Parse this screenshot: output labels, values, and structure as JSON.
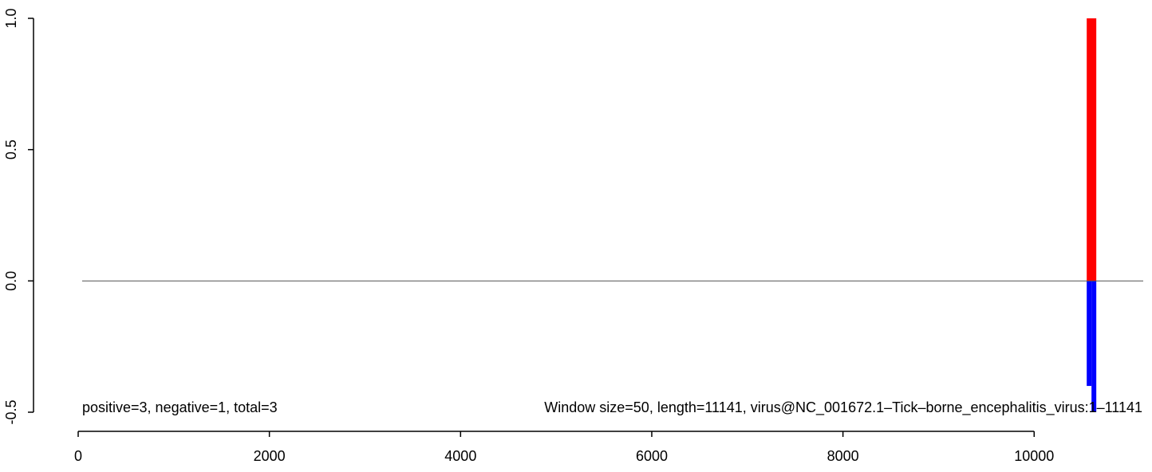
{
  "chart_data": {
    "type": "bar",
    "title": "",
    "xlabel": "",
    "ylabel": "",
    "xlim": [
      0,
      11141
    ],
    "ylim": [
      -0.5,
      1.0
    ],
    "x_ticks": [
      0,
      2000,
      4000,
      6000,
      8000,
      10000
    ],
    "x_tick_labels": [
      "0",
      "2000",
      "4000",
      "6000",
      "8000",
      "10000"
    ],
    "y_ticks": [
      -0.5,
      0.0,
      0.5,
      1.0
    ],
    "y_tick_labels": [
      "-0.5",
      "0.0",
      "0.5",
      "1.0"
    ],
    "baseline": 0,
    "series": [
      {
        "color": "#ff0000",
        "bars": [
          {
            "x_start": 10550,
            "x_end": 10650,
            "value": 1.0
          }
        ]
      },
      {
        "color": "#0000ff",
        "bars": [
          {
            "x_start": 10550,
            "x_end": 10600,
            "value": -0.4
          },
          {
            "x_start": 10600,
            "x_end": 10650,
            "value": -0.5
          }
        ]
      }
    ],
    "annotations": {
      "counts": "positive=3, negative=1, total=3",
      "window": "Window size=50, length=11141, virus@NC_001672.1–Tick–borne_encephalitis_virus:1–11141"
    }
  }
}
